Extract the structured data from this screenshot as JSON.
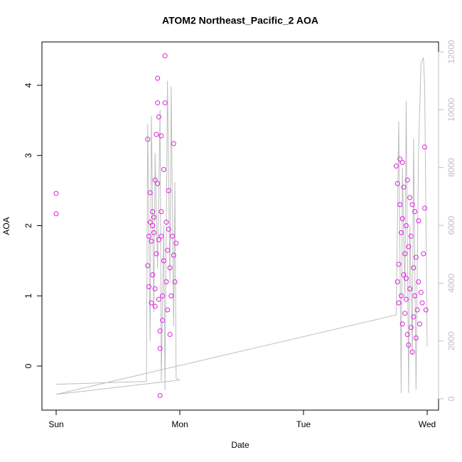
{
  "chart_data": {
    "type": "scatter",
    "title": "ATOM2 Northeast_Pacific_2 AOA",
    "xlabel": "Date",
    "ylabel": "AOA",
    "xlim": [
      -0.115,
      3.092
    ],
    "ylim": [
      -0.628,
      4.618
    ],
    "y2lim": [
      -393,
      12344
    ],
    "xticks": [
      {
        "value": 0,
        "label": "Sun"
      },
      {
        "value": 1,
        "label": "Mon"
      },
      {
        "value": 2,
        "label": "Tue"
      },
      {
        "value": 3,
        "label": "Wed"
      }
    ],
    "yticks": [
      0,
      1,
      2,
      3,
      4
    ],
    "y2ticks": [
      0,
      2000,
      4000,
      6000,
      8000,
      10000,
      12000
    ],
    "series": [
      {
        "type": "line",
        "axis": "y2",
        "color": "#bebebe",
        "x": [
          0,
          0.73,
          0.74,
          0.76,
          0.77,
          0.79,
          0.8,
          0.82,
          0.84,
          0.85,
          0.87,
          0.88,
          0.9,
          0.92,
          0.93,
          0.95,
          0.96,
          0.97,
          1.0,
          0,
          2.75,
          2.77,
          2.79,
          2.8,
          2.82,
          2.83,
          2.85,
          2.86,
          2.88,
          2.89,
          2.91,
          2.93,
          2.95,
          2.97,
          2.98,
          3.0
        ],
        "values": [
          500,
          600,
          9500,
          2000,
          9800,
          3000,
          8500,
          4500,
          10000,
          600,
          6000,
          300,
          11000,
          4000,
          10800,
          2500,
          7500,
          700,
          650,
          150,
          2900,
          9600,
          200,
          8000,
          3500,
          10300,
          200,
          6000,
          1500,
          9000,
          300,
          8500,
          11600,
          11800,
          10800,
          1800
        ]
      },
      {
        "type": "scatter",
        "color": "#e020e0",
        "x": [
          0,
          0,
          0.74,
          0.74,
          0.75,
          0.75,
          0.76,
          0.76,
          0.77,
          0.77,
          0.78,
          0.78,
          0.79,
          0.79,
          0.8,
          0.8,
          0.81,
          0.81,
          0.82,
          0.82,
          0.82,
          0.83,
          0.83,
          0.84,
          0.84,
          0.84,
          0.85,
          0.85,
          0.86,
          0.86,
          0.87,
          0.87,
          0.88,
          0.88,
          0.89,
          0.89,
          0.9,
          0.9,
          0.91,
          0.91,
          0.92,
          0.92,
          0.93,
          0.94,
          0.95,
          0.95,
          0.96,
          0.97,
          0.85,
          0.8,
          0.78,
          0.83,
          2.75,
          2.76,
          2.76,
          2.77,
          2.77,
          2.78,
          2.78,
          2.79,
          2.79,
          2.8,
          2.8,
          2.81,
          2.81,
          2.82,
          2.82,
          2.83,
          2.83,
          2.84,
          2.84,
          2.85,
          2.85,
          2.86,
          2.86,
          2.87,
          2.87,
          2.88,
          2.88,
          2.89,
          2.89,
          2.9,
          2.9,
          2.91,
          2.91,
          2.92,
          2.93,
          2.93,
          2.94,
          2.95,
          2.96,
          2.97,
          2.98,
          2.98,
          2.99,
          2.8,
          2.83
        ],
        "values": [
          2.46,
          2.17,
          3.23,
          1.43,
          1.13,
          1.85,
          2.47,
          2.05,
          0.9,
          1.78,
          2.2,
          1.3,
          1.9,
          2.12,
          1.1,
          0.85,
          3.3,
          1.6,
          3.75,
          4.1,
          2.6,
          3.55,
          1.8,
          0.5,
          0.25,
          -0.42,
          3.28,
          2.2,
          1.0,
          0.65,
          2.8,
          1.5,
          4.42,
          3.75,
          1.2,
          2.05,
          1.65,
          0.8,
          1.95,
          2.5,
          0.45,
          1.4,
          1.0,
          1.85,
          3.17,
          1.58,
          1.2,
          1.75,
          1.85,
          2.65,
          2.0,
          0.95,
          2.85,
          1.2,
          2.6,
          1.45,
          0.9,
          2.95,
          2.3,
          1.0,
          1.9,
          2.1,
          0.6,
          2.55,
          1.3,
          0.75,
          1.6,
          2.0,
          0.95,
          2.65,
          0.45,
          1.7,
          0.3,
          2.4,
          1.1,
          0.55,
          1.85,
          2.3,
          0.2,
          1.4,
          0.7,
          2.2,
          1.0,
          0.4,
          1.55,
          0.8,
          2.07,
          1.2,
          0.6,
          1.05,
          0.9,
          1.6,
          3.12,
          2.25,
          0.8,
          2.9,
          1.25
        ]
      }
    ]
  }
}
